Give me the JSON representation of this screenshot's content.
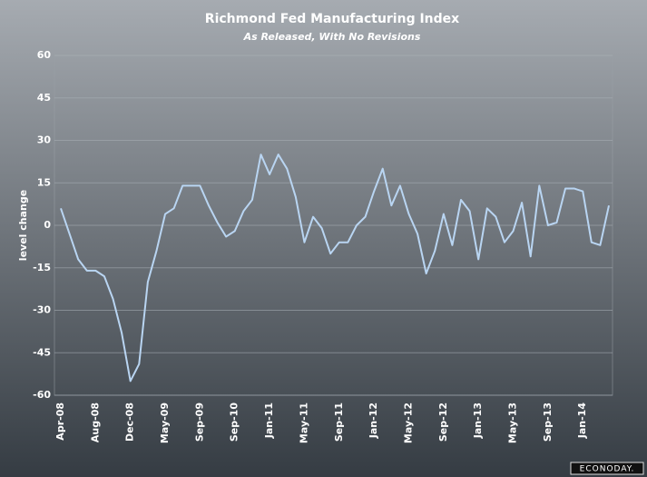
{
  "chart_data": {
    "type": "line",
    "title": "Richmond Fed Manufacturing Index",
    "subtitle": "As Released, With No Revisions",
    "y_label": "level change",
    "logo": "ECONODAY.",
    "categories": [
      "Apr-08",
      null,
      null,
      null,
      "Aug-08",
      null,
      null,
      null,
      "Dec-08",
      null,
      null,
      null,
      "May-09",
      null,
      null,
      null,
      "Sep-09",
      null,
      null,
      null,
      "Sep-10",
      null,
      null,
      null,
      "Jan-11",
      null,
      null,
      null,
      "May-11",
      null,
      null,
      null,
      "Sep-11",
      null,
      null,
      null,
      "Jan-12",
      null,
      null,
      null,
      "May-12",
      null,
      null,
      null,
      "Sep-12",
      null,
      null,
      null,
      "Jan-13",
      null,
      null,
      null,
      "May-13",
      null,
      null,
      null,
      "Sep-13",
      null,
      null,
      null,
      "Jan-14",
      null,
      null,
      null
    ],
    "series": [
      {
        "name": "Richmond Fed Manufacturing Index",
        "color": "#b9d5f2",
        "values": [
          6,
          -3,
          -12,
          -16,
          -16,
          -18,
          -26,
          -38,
          -55,
          -49,
          -20,
          -9,
          4,
          6,
          14,
          14,
          14,
          7,
          1,
          -4,
          -2,
          5,
          9,
          25,
          18,
          25,
          20,
          10,
          -6,
          3,
          -1,
          -10,
          -6,
          -6,
          0,
          3,
          12,
          20,
          7,
          14,
          4,
          -3,
          -17,
          -9,
          4,
          -7,
          9,
          5,
          -12,
          6,
          3,
          -6,
          -2,
          8,
          -11,
          14,
          0,
          1,
          13,
          13,
          12,
          -6,
          -7,
          7
        ]
      }
    ],
    "ylim": [
      -60,
      60
    ],
    "yticks": [
      -60,
      -45,
      -30,
      -15,
      0,
      15,
      30,
      45,
      60
    ],
    "grid": true
  }
}
